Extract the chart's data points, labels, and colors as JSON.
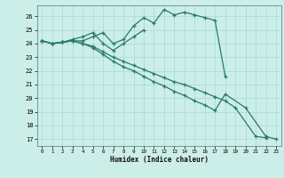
{
  "title": "",
  "xlabel": "Humidex (Indice chaleur)",
  "ylabel": "",
  "background_color": "#cceee8",
  "grid_color": "#aadddd",
  "line_color": "#2a7a6a",
  "xlim": [
    -0.5,
    23.5
  ],
  "ylim": [
    16.5,
    26.8
  ],
  "yticks": [
    17,
    18,
    19,
    20,
    21,
    22,
    23,
    24,
    25,
    26
  ],
  "xticks": [
    0,
    1,
    2,
    3,
    4,
    5,
    6,
    7,
    8,
    9,
    10,
    11,
    12,
    13,
    14,
    15,
    16,
    17,
    18,
    19,
    20,
    21,
    22,
    23
  ],
  "series": [
    {
      "x": [
        0,
        1,
        2,
        3,
        4,
        5,
        6,
        7,
        8,
        9,
        10,
        11,
        12,
        13,
        14,
        15,
        16,
        17,
        18
      ],
      "y": [
        24.2,
        24.0,
        24.1,
        24.2,
        24.2,
        24.5,
        24.8,
        24.0,
        24.3,
        25.3,
        25.9,
        25.5,
        26.5,
        26.1,
        26.3,
        26.1,
        25.9,
        25.7,
        21.6
      ]
    },
    {
      "x": [
        0,
        1,
        2,
        3,
        4,
        5,
        6,
        7,
        8,
        9,
        10
      ],
      "y": [
        24.2,
        24.0,
        24.1,
        24.3,
        24.5,
        24.8,
        24.0,
        23.5,
        24.0,
        24.5,
        25.0
      ]
    },
    {
      "x": [
        0,
        1,
        2,
        3,
        4,
        5,
        6,
        7,
        8,
        9,
        10,
        11,
        12,
        13,
        14,
        15,
        16,
        17,
        18,
        19,
        21,
        22
      ],
      "y": [
        24.2,
        24.0,
        24.1,
        24.2,
        24.0,
        23.8,
        23.4,
        23.0,
        22.7,
        22.4,
        22.1,
        21.8,
        21.5,
        21.2,
        21.0,
        20.7,
        20.4,
        20.1,
        19.8,
        19.3,
        17.2,
        17.1
      ]
    },
    {
      "x": [
        0,
        1,
        2,
        3,
        4,
        5,
        6,
        7,
        8,
        9,
        10,
        11,
        12,
        13,
        14,
        15,
        16,
        17,
        18,
        20,
        22,
        23
      ],
      "y": [
        24.2,
        24.0,
        24.1,
        24.2,
        24.0,
        23.7,
        23.2,
        22.7,
        22.3,
        22.0,
        21.6,
        21.2,
        20.9,
        20.5,
        20.2,
        19.8,
        19.5,
        19.1,
        20.3,
        19.3,
        17.2,
        17.0
      ]
    }
  ]
}
